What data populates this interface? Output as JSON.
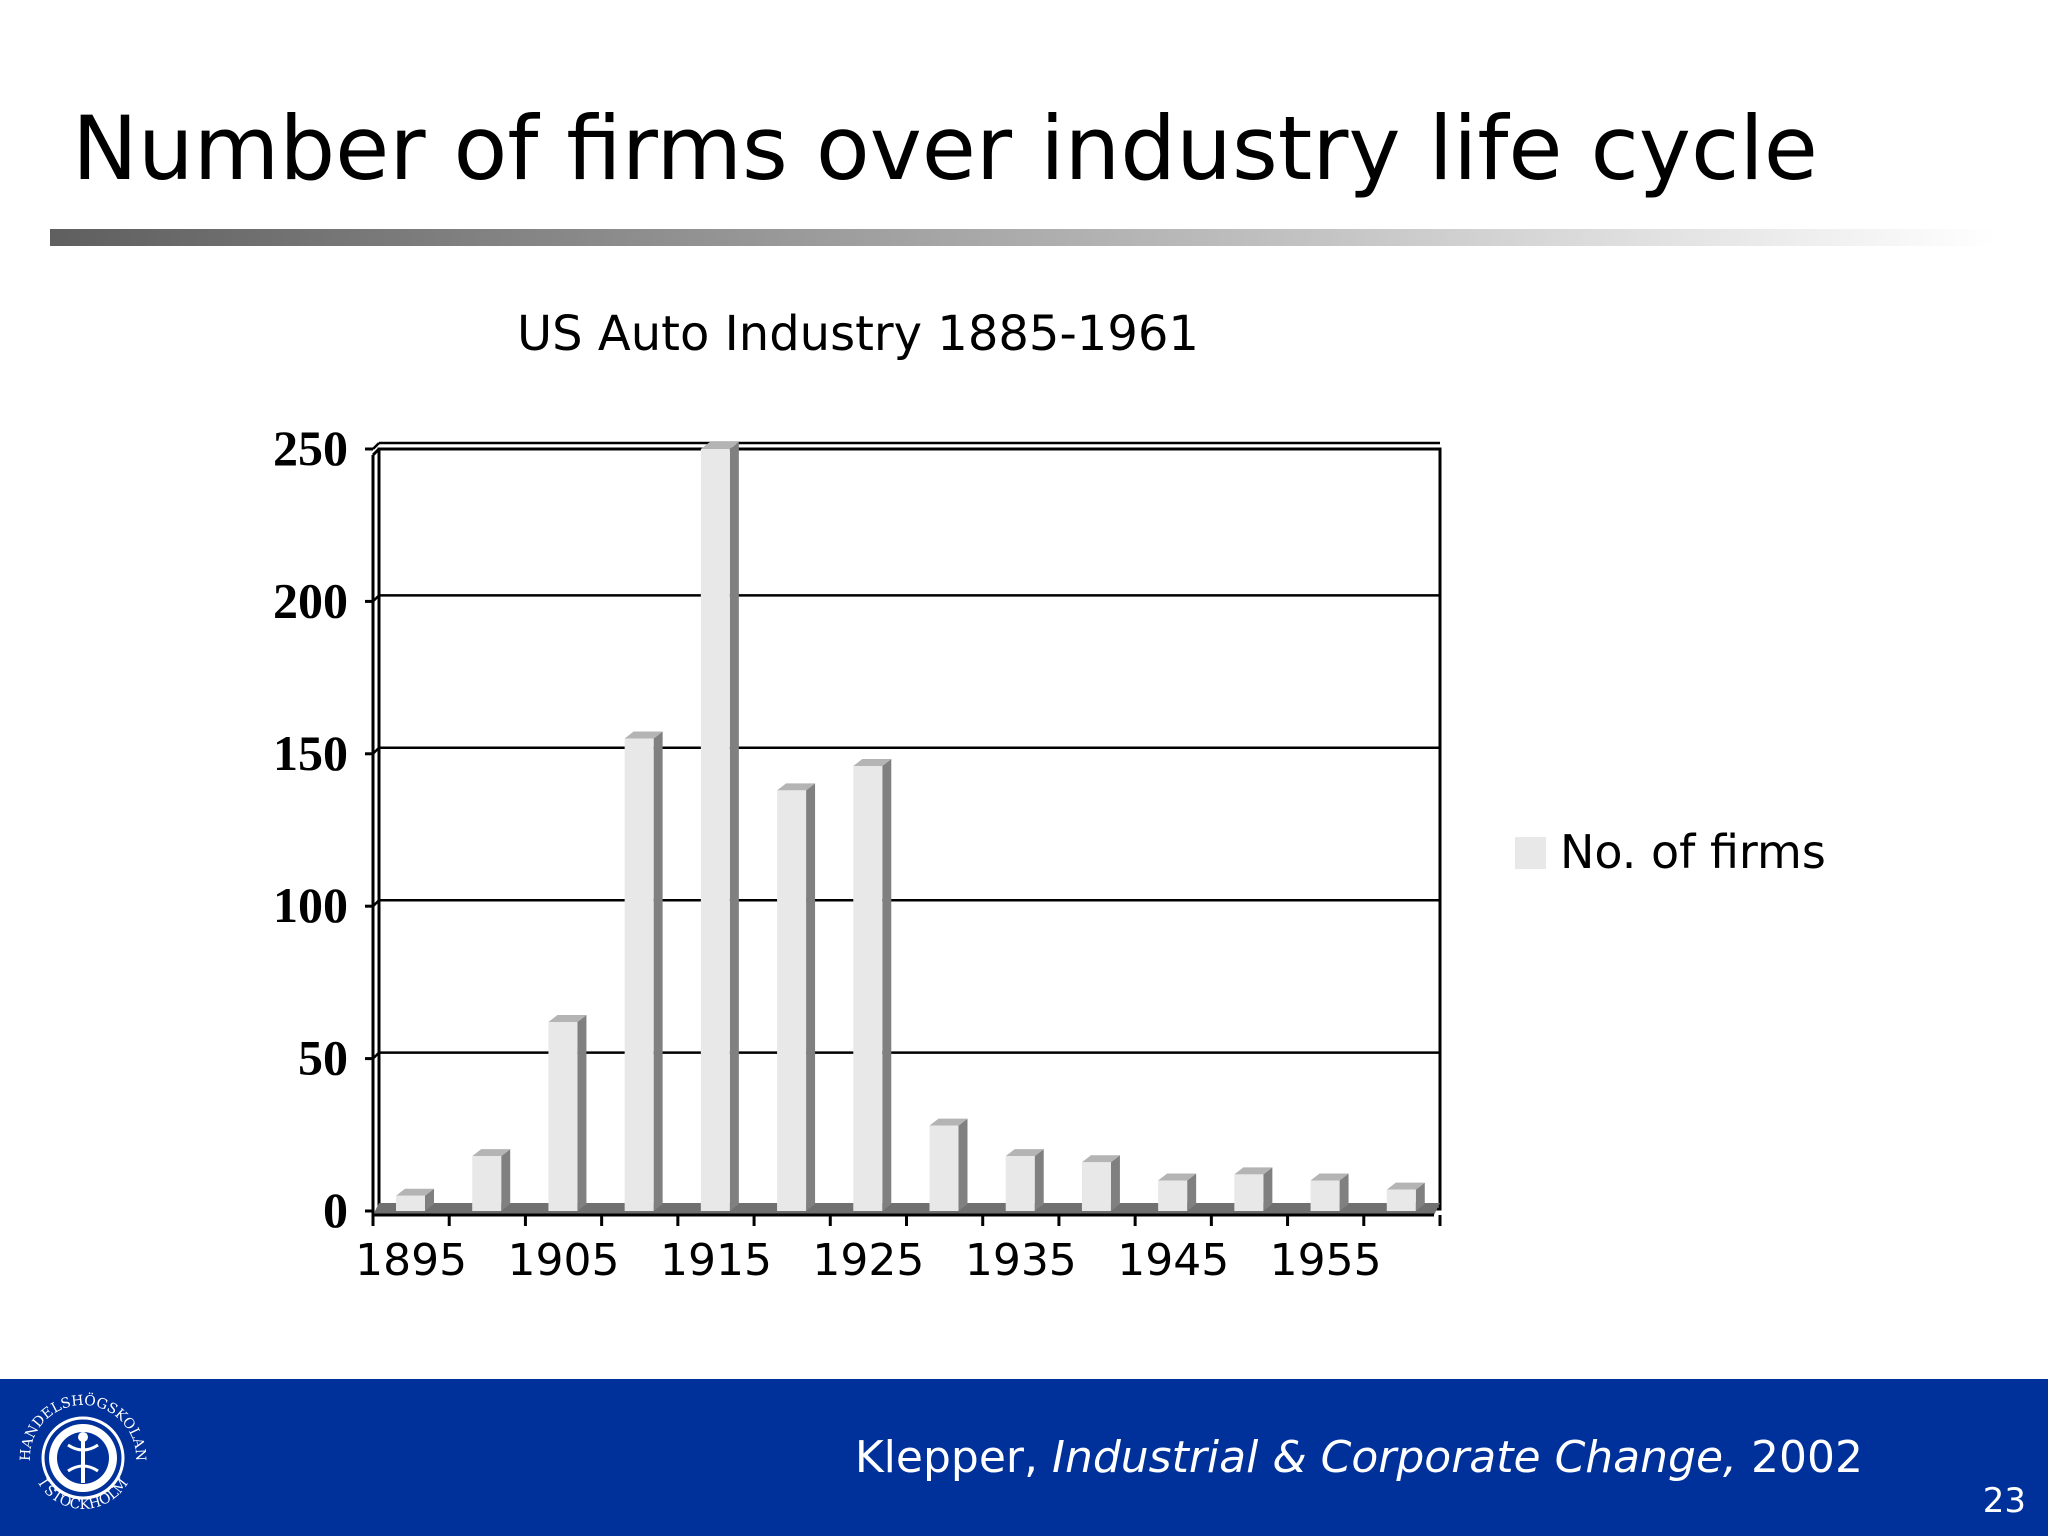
{
  "slide": {
    "title": "Number of firms over industry life cycle",
    "page_number": "23"
  },
  "footer": {
    "author": "Klepper,",
    "journal": "Industrial & Corporate Change,",
    "year": "2002",
    "background_color": "#00309a"
  },
  "logo": {
    "name": "handelshogskolan-seal-icon",
    "text_top": "HANDELSHÖGSKOLAN",
    "text_bottom": "I STOCKHOLM"
  },
  "chart_data": {
    "type": "bar",
    "title": "US Auto Industry 1885-1961",
    "xlabel": "",
    "ylabel": "",
    "categories": [
      "1895",
      "1900",
      "1905",
      "1910",
      "1915",
      "1920",
      "1925",
      "1930",
      "1935",
      "1940",
      "1945",
      "1950",
      "1955",
      "1960"
    ],
    "x_tick_labels": [
      "1895",
      "1905",
      "1915",
      "1925",
      "1935",
      "1945",
      "1955"
    ],
    "y_ticks": [
      0,
      50,
      100,
      150,
      200,
      250
    ],
    "ylim": [
      0,
      250
    ],
    "series": [
      {
        "name": "No. of firms",
        "values": [
          5,
          18,
          62,
          155,
          250,
          138,
          146,
          28,
          18,
          16,
          10,
          12,
          10,
          7
        ]
      }
    ],
    "colors": {
      "bar_front": "#e8e8e8",
      "bar_side": "#808080",
      "bar_top": "#b4b4b4"
    },
    "grid": true,
    "legend_position": "right"
  }
}
